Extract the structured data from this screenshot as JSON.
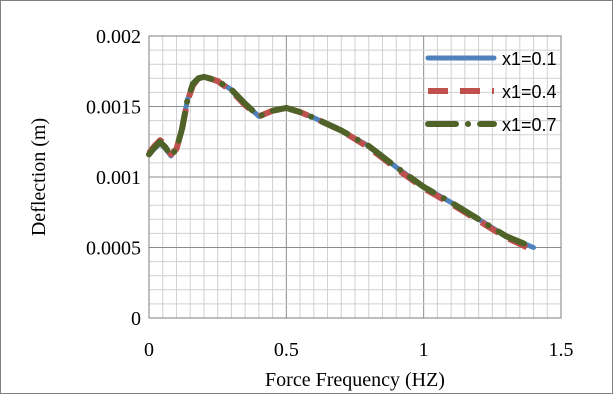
{
  "chart_data": {
    "type": "line",
    "xlabel": "Force Frequency  (HZ)",
    "ylabel": "Deflection  (m)",
    "xlim": [
      0,
      1.5
    ],
    "ylim": [
      0,
      0.002
    ],
    "x_ticks": [
      0,
      0.5,
      1,
      1.5
    ],
    "x_tick_labels": [
      "0",
      "0.5",
      "1",
      "1.5"
    ],
    "y_ticks": [
      0,
      0.0005,
      0.001,
      0.0015,
      0.002
    ],
    "y_tick_labels": [
      "0",
      "0.0005",
      "0.001",
      "0.0015",
      "0.002"
    ],
    "grid": true,
    "legend_position": "top-right",
    "series": [
      {
        "name": "x1=0.1",
        "color": "#4f81bd",
        "style": "solid",
        "x": [
          0,
          0.02,
          0.04,
          0.06,
          0.08,
          0.1,
          0.12,
          0.14,
          0.16,
          0.18,
          0.2,
          0.22,
          0.25,
          0.3,
          0.35,
          0.4,
          0.45,
          0.5,
          0.55,
          0.6,
          0.7,
          0.8,
          0.9,
          1.0,
          1.1,
          1.2,
          1.3,
          1.4
        ],
        "y": [
          0.00116,
          0.0012,
          0.00124,
          0.0012,
          0.00115,
          0.0012,
          0.00135,
          0.00155,
          0.00165,
          0.0017,
          0.00171,
          0.0017,
          0.00168,
          0.00162,
          0.00152,
          0.00143,
          0.00147,
          0.00149,
          0.00146,
          0.00142,
          0.00133,
          0.00122,
          0.00107,
          0.00093,
          0.00082,
          0.0007,
          0.00058,
          0.0005
        ]
      },
      {
        "name": "x1=0.4",
        "color": "#c0504d",
        "style": "dashed",
        "x": [
          0,
          0.02,
          0.04,
          0.06,
          0.08,
          0.1,
          0.12,
          0.14,
          0.16,
          0.18,
          0.2,
          0.22,
          0.25,
          0.3,
          0.35,
          0.4,
          0.45,
          0.5,
          0.55,
          0.6,
          0.7,
          0.8,
          0.9,
          1.0,
          1.1,
          1.2,
          1.3,
          1.4
        ],
        "y": [
          0.00117,
          0.00122,
          0.00126,
          0.00123,
          0.00116,
          0.0012,
          0.00134,
          0.00154,
          0.00165,
          0.0017,
          0.00171,
          0.0017,
          0.00168,
          0.00161,
          0.00151,
          0.00143,
          0.00147,
          0.00149,
          0.00146,
          0.00142,
          0.00133,
          0.00121,
          0.00106,
          0.00092,
          0.00081,
          0.00069,
          0.00057,
          0.00048
        ]
      },
      {
        "name": "x1=0.7",
        "color": "#4f6228",
        "style": "dash-dot",
        "x": [
          0,
          0.02,
          0.04,
          0.06,
          0.08,
          0.1,
          0.12,
          0.14,
          0.16,
          0.18,
          0.2,
          0.22,
          0.25,
          0.3,
          0.35,
          0.4,
          0.45,
          0.5,
          0.55,
          0.6,
          0.7,
          0.8,
          0.9,
          1.0,
          1.1,
          1.2,
          1.3,
          1.4
        ],
        "y": [
          0.00116,
          0.00121,
          0.00125,
          0.00121,
          0.00115,
          0.0012,
          0.00134,
          0.00155,
          0.00166,
          0.0017,
          0.00171,
          0.0017,
          0.00168,
          0.00162,
          0.00152,
          0.00143,
          0.00147,
          0.00149,
          0.00146,
          0.00142,
          0.00133,
          0.00122,
          0.00107,
          0.00093,
          0.00082,
          0.0007,
          0.00058,
          0.0005
        ]
      }
    ]
  }
}
